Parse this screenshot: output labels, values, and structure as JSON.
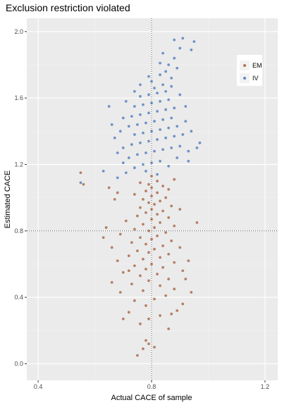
{
  "chart_data": {
    "type": "scatter",
    "title": "Exclusion restriction violated",
    "xlabel": "Actual CACE of sample",
    "ylabel": "Estimated CACE",
    "xlim": [
      0.36,
      1.245
    ],
    "ylim": [
      -0.1,
      2.08
    ],
    "x_ticks": [
      0.4,
      0.8,
      1.2
    ],
    "x_tick_labels": [
      "0.4",
      "0.8",
      "1.2"
    ],
    "y_ticks": [
      0.0,
      0.4,
      0.8,
      1.2,
      1.6,
      2.0
    ],
    "y_tick_labels": [
      "0.0",
      "0.4",
      "0.8",
      "1.2",
      "1.6",
      "2.0"
    ],
    "reference_lines": {
      "x": 0.8,
      "y": 0.8,
      "style": "dotted"
    },
    "grid": true,
    "legend_position": "top-right",
    "series": [
      {
        "name": "EM",
        "color": "#a0522d",
        "points": [
          [
            0.75,
            0.05
          ],
          [
            0.77,
            0.09
          ],
          [
            0.79,
            0.12
          ],
          [
            0.78,
            0.14
          ],
          [
            0.81,
            0.1
          ],
          [
            0.86,
            0.21
          ],
          [
            0.76,
            0.24
          ],
          [
            0.79,
            0.27
          ],
          [
            0.83,
            0.29
          ],
          [
            0.72,
            0.31
          ],
          [
            0.89,
            0.32
          ],
          [
            0.78,
            0.35
          ],
          [
            0.74,
            0.38
          ],
          [
            0.91,
            0.36
          ],
          [
            0.81,
            0.39
          ],
          [
            0.85,
            0.41
          ],
          [
            0.69,
            0.43
          ],
          [
            0.77,
            0.44
          ],
          [
            0.88,
            0.45
          ],
          [
            0.83,
            0.47
          ],
          [
            0.73,
            0.48
          ],
          [
            0.66,
            0.49
          ],
          [
            0.79,
            0.5
          ],
          [
            0.86,
            0.51
          ],
          [
            0.76,
            0.53
          ],
          [
            0.82,
            0.54
          ],
          [
            0.7,
            0.55
          ],
          [
            0.91,
            0.56
          ],
          [
            0.78,
            0.57
          ],
          [
            0.84,
            0.58
          ],
          [
            0.74,
            0.59
          ],
          [
            0.8,
            0.6
          ],
          [
            0.88,
            0.61
          ],
          [
            0.68,
            0.62
          ],
          [
            0.77,
            0.63
          ],
          [
            0.83,
            0.64
          ],
          [
            0.72,
            0.65
          ],
          [
            0.86,
            0.66
          ],
          [
            0.79,
            0.67
          ],
          [
            0.75,
            0.68
          ],
          [
            0.81,
            0.69
          ],
          [
            0.9,
            0.7
          ],
          [
            0.66,
            0.7
          ],
          [
            0.84,
            0.71
          ],
          [
            0.78,
            0.72
          ],
          [
            0.73,
            0.73
          ],
          [
            0.87,
            0.74
          ],
          [
            0.8,
            0.75
          ],
          [
            0.76,
            0.76
          ],
          [
            0.82,
            0.77
          ],
          [
            0.69,
            0.78
          ],
          [
            0.85,
            0.79
          ],
          [
            0.79,
            0.8
          ],
          [
            0.74,
            0.81
          ],
          [
            0.81,
            0.82
          ],
          [
            0.88,
            0.83
          ],
          [
            0.77,
            0.84
          ],
          [
            0.83,
            0.85
          ],
          [
            0.71,
            0.86
          ],
          [
            0.8,
            0.87
          ],
          [
            0.86,
            0.88
          ],
          [
            0.75,
            0.89
          ],
          [
            0.82,
            0.9
          ],
          [
            0.78,
            0.91
          ],
          [
            0.84,
            0.92
          ],
          [
            0.8,
            0.93
          ],
          [
            0.76,
            0.94
          ],
          [
            0.87,
            0.95
          ],
          [
            0.81,
            0.96
          ],
          [
            0.79,
            0.97
          ],
          [
            0.83,
            0.98
          ],
          [
            0.77,
            0.99
          ],
          [
            0.85,
            1.0
          ],
          [
            0.8,
            1.01
          ],
          [
            0.74,
            1.02
          ],
          [
            0.82,
            1.03
          ],
          [
            0.78,
            1.04
          ],
          [
            0.86,
            1.05
          ],
          [
            0.8,
            1.06
          ],
          [
            0.84,
            1.07
          ],
          [
            0.79,
            1.08
          ],
          [
            0.76,
            1.09
          ],
          [
            0.82,
            1.1
          ],
          [
            0.88,
            1.11
          ],
          [
            0.8,
            1.13
          ],
          [
            0.55,
            1.15
          ],
          [
            0.56,
            1.08
          ],
          [
            0.65,
            1.06
          ],
          [
            0.68,
            1.03
          ],
          [
            0.96,
            0.85
          ],
          [
            0.93,
            0.62
          ],
          [
            0.63,
            0.76
          ],
          [
            0.92,
            0.51
          ],
          [
            0.7,
            0.27
          ],
          [
            0.64,
            0.82
          ],
          [
            0.94,
            0.43
          ],
          [
            0.67,
            0.99
          ],
          [
            0.9,
            0.93
          ],
          [
            0.72,
            0.56
          ],
          [
            0.87,
            0.3
          ]
        ]
      },
      {
        "name": "IV",
        "color": "#3a6db5",
        "points": [
          [
            0.55,
            1.09
          ],
          [
            0.63,
            1.16
          ],
          [
            0.68,
            1.12
          ],
          [
            0.71,
            1.15
          ],
          [
            0.74,
            1.18
          ],
          [
            0.77,
            1.2
          ],
          [
            0.8,
            1.21
          ],
          [
            0.83,
            1.22
          ],
          [
            0.86,
            1.19
          ],
          [
            0.89,
            1.24
          ],
          [
            0.72,
            1.24
          ],
          [
            0.75,
            1.26
          ],
          [
            0.78,
            1.27
          ],
          [
            0.81,
            1.28
          ],
          [
            0.84,
            1.29
          ],
          [
            0.87,
            1.3
          ],
          [
            0.9,
            1.31
          ],
          [
            0.93,
            1.28
          ],
          [
            0.96,
            1.3
          ],
          [
            0.7,
            1.3
          ],
          [
            0.73,
            1.32
          ],
          [
            0.76,
            1.33
          ],
          [
            0.79,
            1.34
          ],
          [
            0.82,
            1.35
          ],
          [
            0.85,
            1.36
          ],
          [
            0.88,
            1.37
          ],
          [
            0.91,
            1.38
          ],
          [
            0.67,
            1.36
          ],
          [
            0.74,
            1.38
          ],
          [
            0.77,
            1.39
          ],
          [
            0.8,
            1.4
          ],
          [
            0.83,
            1.41
          ],
          [
            0.86,
            1.42
          ],
          [
            0.89,
            1.43
          ],
          [
            0.72,
            1.43
          ],
          [
            0.75,
            1.44
          ],
          [
            0.78,
            1.45
          ],
          [
            0.81,
            1.46
          ],
          [
            0.84,
            1.47
          ],
          [
            0.87,
            1.48
          ],
          [
            0.7,
            1.48
          ],
          [
            0.73,
            1.49
          ],
          [
            0.76,
            1.5
          ],
          [
            0.79,
            1.51
          ],
          [
            0.82,
            1.52
          ],
          [
            0.85,
            1.53
          ],
          [
            0.88,
            1.54
          ],
          [
            0.74,
            1.55
          ],
          [
            0.77,
            1.56
          ],
          [
            0.8,
            1.57
          ],
          [
            0.83,
            1.58
          ],
          [
            0.86,
            1.59
          ],
          [
            0.76,
            1.61
          ],
          [
            0.79,
            1.62
          ],
          [
            0.82,
            1.63
          ],
          [
            0.85,
            1.64
          ],
          [
            0.81,
            1.66
          ],
          [
            0.84,
            1.68
          ],
          [
            0.8,
            1.7
          ],
          [
            0.87,
            1.72
          ],
          [
            0.83,
            1.74
          ],
          [
            0.85,
            1.76
          ],
          [
            0.89,
            1.78
          ],
          [
            0.86,
            1.8
          ],
          [
            0.88,
            1.84
          ],
          [
            0.84,
            1.87
          ],
          [
            0.9,
            1.9
          ],
          [
            0.94,
            1.89
          ],
          [
            0.88,
            1.95
          ],
          [
            0.91,
            1.96
          ],
          [
            0.95,
            1.94
          ],
          [
            0.65,
            1.55
          ],
          [
            0.66,
            1.44
          ],
          [
            0.69,
            1.4
          ],
          [
            0.92,
            1.46
          ],
          [
            0.94,
            1.4
          ],
          [
            0.93,
            1.22
          ],
          [
            0.71,
            1.58
          ],
          [
            0.9,
            1.62
          ],
          [
            0.76,
            1.68
          ],
          [
            0.97,
            1.33
          ],
          [
            0.68,
            1.27
          ],
          [
            0.92,
            1.55
          ],
          [
            0.74,
            1.64
          ],
          [
            0.87,
            1.67
          ],
          [
            0.79,
            1.73
          ],
          [
            0.83,
            1.81
          ],
          [
            0.7,
            1.21
          ],
          [
            0.78,
            1.16
          ],
          [
            0.82,
            1.14
          ]
        ]
      }
    ]
  }
}
